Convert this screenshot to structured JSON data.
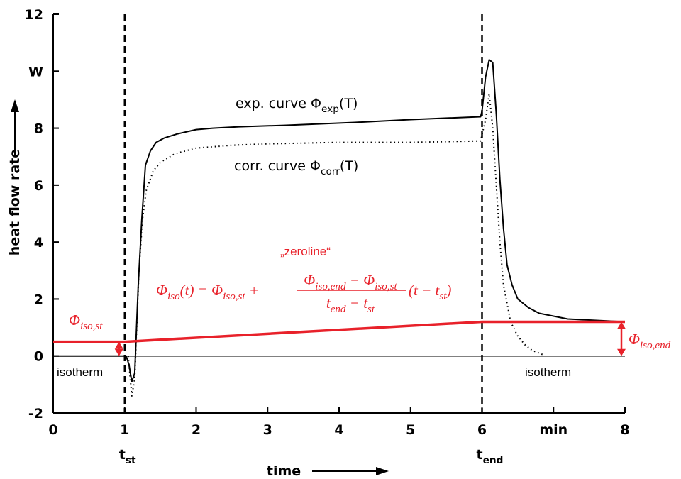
{
  "chart_data": {
    "type": "line",
    "x_label": "time",
    "y_label": "heat flow rate",
    "xlim": [
      0,
      8
    ],
    "ylim": [
      -2,
      12
    ],
    "xticks": [
      0,
      1,
      2,
      3,
      4,
      5,
      6,
      {
        "value": 7,
        "label": "min"
      },
      8
    ],
    "yticks": [
      -2,
      0,
      2,
      4,
      6,
      8,
      {
        "value": 10,
        "label": "W"
      },
      12
    ],
    "baseline": 0,
    "series": [
      {
        "color": "#000000",
        "dash": "none",
        "x": [
          0,
          1.02,
          1.06,
          1.1,
          1.14,
          1.19,
          1.24,
          1.29,
          1.36,
          1.44,
          1.55,
          1.74,
          2.0,
          2.23,
          2.6,
          3.23,
          4.22,
          5.0,
          5.98,
          6.0,
          6.05,
          6.1,
          6.15,
          6.2,
          6.25,
          6.3,
          6.35,
          6.42,
          6.5,
          6.65,
          6.8,
          7.2,
          7.6,
          8
        ],
        "values": [
          0,
          0,
          -0.3,
          -0.9,
          -0.6,
          2.5,
          4.8,
          6.7,
          7.2,
          7.5,
          7.65,
          7.8,
          7.95,
          8.0,
          8.05,
          8.1,
          8.2,
          8.3,
          8.4,
          8.6,
          9.8,
          10.4,
          10.3,
          8.5,
          6.2,
          4.5,
          3.2,
          2.5,
          2.0,
          1.7,
          1.5,
          1.3,
          1.25,
          1.2
        ]
      },
      {
        "color": "#000000",
        "dash": "1.5 4",
        "x": [
          1.05,
          1.1,
          1.14,
          1.2,
          1.25,
          1.3,
          1.4,
          1.5,
          1.7,
          2.0,
          2.5,
          3.0,
          4.0,
          5.0,
          5.98,
          6.05,
          6.1,
          6.15,
          6.2,
          6.25,
          6.3,
          6.4,
          6.5,
          6.6,
          6.7,
          6.85
        ],
        "values": [
          0,
          -1.4,
          -0.8,
          3.0,
          4.8,
          5.8,
          6.5,
          6.8,
          7.1,
          7.3,
          7.4,
          7.45,
          7.5,
          7.5,
          7.55,
          8.3,
          9.2,
          8.0,
          6.0,
          4.0,
          2.5,
          1.2,
          0.7,
          0.4,
          0.2,
          0.05
        ]
      },
      {
        "color": "#e8212a",
        "dash": "none",
        "x": [
          0,
          1,
          6,
          8
        ],
        "values": [
          0.5,
          0.5,
          1.2,
          1.2
        ]
      }
    ],
    "vlines": [
      {
        "value": 1,
        "parts": [
          {
            "text": "t"
          },
          {
            "text": "st",
            "sub": true
          }
        ]
      },
      {
        "value": 6,
        "parts": [
          {
            "text": "t"
          },
          {
            "text": "end",
            "sub": true
          }
        ]
      }
    ],
    "annotations": [
      {
        "color": "#000000",
        "parts": [
          {
            "text": "exp. curve Φ"
          },
          {
            "text": "exp",
            "sub": true
          },
          {
            "text": "(T)"
          }
        ]
      },
      {
        "color": "#000000",
        "parts": [
          {
            "text": "corr. curve Φ"
          },
          {
            "text": "corr",
            "sub": true
          },
          {
            "text": "(T)"
          }
        ]
      },
      {
        "color": "#e8212a",
        "parts": [
          {
            "text": "„zeroline“"
          }
        ]
      },
      {
        "color": "#e8212a",
        "parts": [
          {
            "text": "Φ"
          },
          {
            "text": "iso,st",
            "sub": true
          }
        ]
      },
      {
        "color": "#e8212a",
        "parts": [
          {
            "text": "Φ"
          },
          {
            "text": "iso,end",
            "sub": true
          }
        ]
      },
      {
        "color": "#000000",
        "parts": [
          {
            "text": "isotherm"
          }
        ]
      },
      {
        "color": "#000000",
        "parts": [
          {
            "text": "isotherm"
          }
        ]
      }
    ],
    "formula": {
      "color": "#e8212a",
      "lhs": [
        {
          "text": "Φ"
        },
        {
          "text": "iso",
          "sub": true
        },
        {
          "text": "(t) = Φ"
        },
        {
          "text": "iso,st",
          "sub": true
        },
        {
          "text": " + "
        }
      ],
      "numerator": [
        {
          "text": "Φ"
        },
        {
          "text": "iso,end",
          "sub": true
        },
        {
          "text": " − Φ"
        },
        {
          "text": "iso,st",
          "sub": true
        }
      ],
      "denominator": [
        {
          "text": "t"
        },
        {
          "text": "end",
          "sub": true
        },
        {
          "text": " − t"
        },
        {
          "text": "st",
          "sub": true
        }
      ],
      "tail": [
        {
          "text": "(t − t"
        },
        {
          "text": "st",
          "sub": true
        },
        {
          "text": ")"
        }
      ]
    }
  }
}
